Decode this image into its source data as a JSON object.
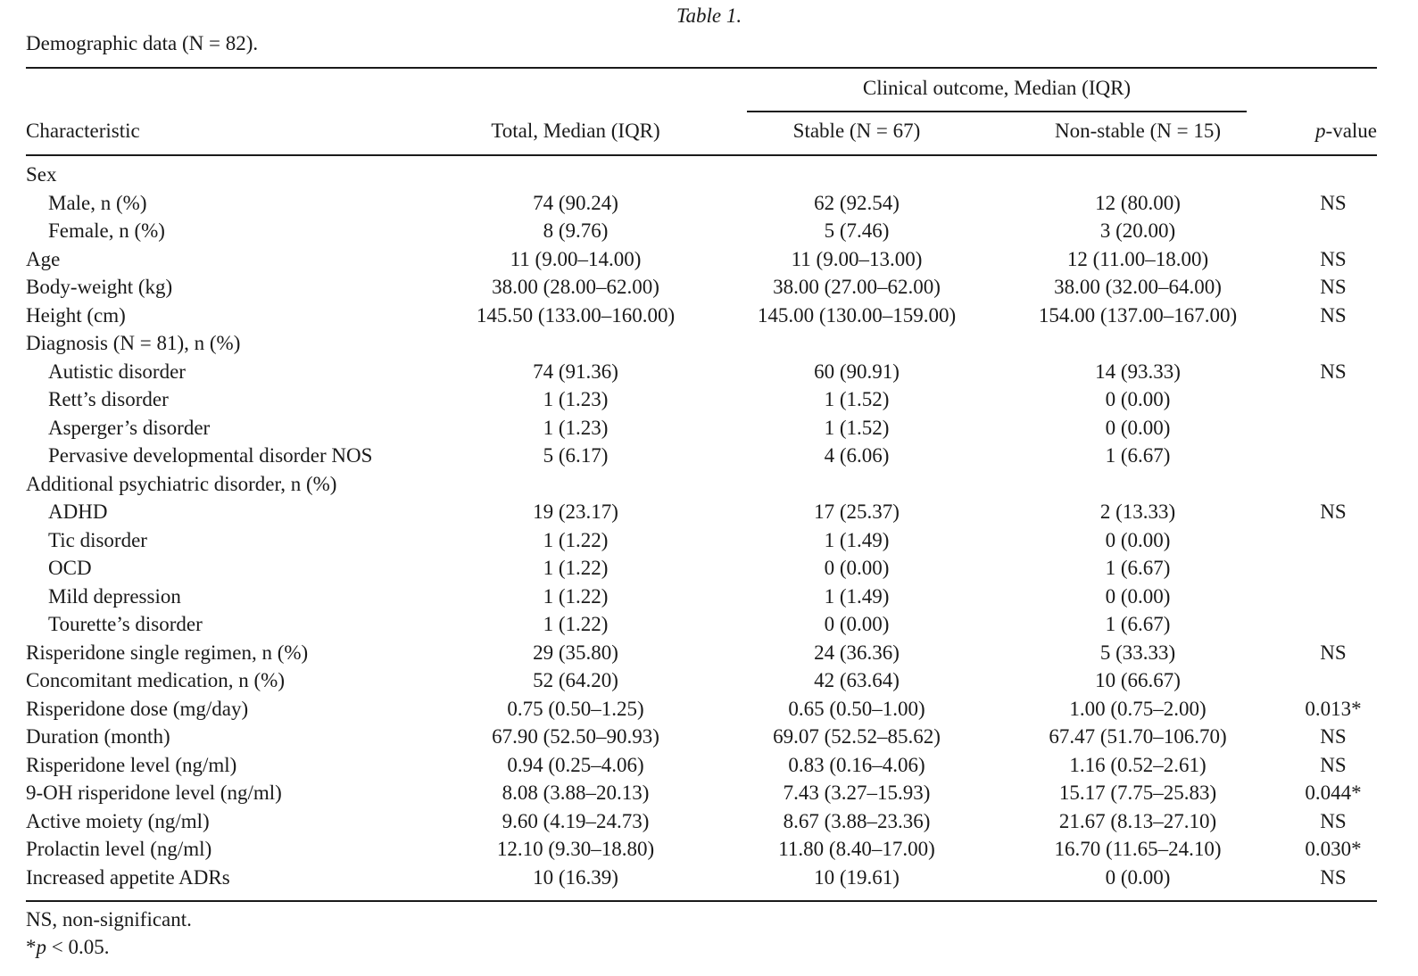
{
  "caption": {
    "title": "Table 1.",
    "subtitle": "Demographic data (N = 82)."
  },
  "headers": {
    "group": "Clinical outcome, Median (IQR)",
    "characteristic": "Characteristic",
    "total": "Total, Median (IQR)",
    "stable": "Stable (N = 67)",
    "nonstable": "Non-stable (N = 15)",
    "pvalue_italic": "p",
    "pvalue_rest": "-value"
  },
  "rows": [
    {
      "label": "Sex",
      "total": "",
      "stable": "",
      "nonstable": "",
      "p": ""
    },
    {
      "label": "Male, n (%)",
      "total": "74 (90.24)",
      "stable": "62 (92.54)",
      "nonstable": "12 (80.00)",
      "p": "NS"
    },
    {
      "label": "Female, n (%)",
      "total": "8 (9.76)",
      "stable": "5 (7.46)",
      "nonstable": "3 (20.00)",
      "p": ""
    },
    {
      "label": "Age",
      "total": "11 (9.00–14.00)",
      "stable": "11 (9.00–13.00)",
      "nonstable": "12 (11.00–18.00)",
      "p": "NS"
    },
    {
      "label": "Body-weight (kg)",
      "total": "38.00 (28.00–62.00)",
      "stable": "38.00 (27.00–62.00)",
      "nonstable": "38.00 (32.00–64.00)",
      "p": "NS"
    },
    {
      "label": "Height (cm)",
      "total": "145.50 (133.00–160.00)",
      "stable": "145.00 (130.00–159.00)",
      "nonstable": "154.00 (137.00–167.00)",
      "p": "NS"
    },
    {
      "label": "Diagnosis (N = 81), n (%)",
      "total": "",
      "stable": "",
      "nonstable": "",
      "p": ""
    },
    {
      "label": "Autistic disorder",
      "total": "74 (91.36)",
      "stable": "60 (90.91)",
      "nonstable": "14 (93.33)",
      "p": "NS"
    },
    {
      "label": "Rett’s disorder",
      "total": "1 (1.23)",
      "stable": "1 (1.52)",
      "nonstable": "0 (0.00)",
      "p": ""
    },
    {
      "label": "Asperger’s disorder",
      "total": "1 (1.23)",
      "stable": "1 (1.52)",
      "nonstable": "0 (0.00)",
      "p": ""
    },
    {
      "label": "Pervasive developmental disorder NOS",
      "total": "5 (6.17)",
      "stable": "4 (6.06)",
      "nonstable": "1 (6.67)",
      "p": ""
    },
    {
      "label": "Additional psychiatric disorder, n (%)",
      "total": "",
      "stable": "",
      "nonstable": "",
      "p": ""
    },
    {
      "label": "ADHD",
      "total": "19 (23.17)",
      "stable": "17 (25.37)",
      "nonstable": "2 (13.33)",
      "p": "NS"
    },
    {
      "label": "Tic disorder",
      "total": "1 (1.22)",
      "stable": "1 (1.49)",
      "nonstable": "0 (0.00)",
      "p": ""
    },
    {
      "label": "OCD",
      "total": "1 (1.22)",
      "stable": "0 (0.00)",
      "nonstable": "1 (6.67)",
      "p": ""
    },
    {
      "label": "Mild depression",
      "total": "1 (1.22)",
      "stable": "1 (1.49)",
      "nonstable": "0 (0.00)",
      "p": ""
    },
    {
      "label": "Tourette’s disorder",
      "total": "1 (1.22)",
      "stable": "0 (0.00)",
      "nonstable": "1 (6.67)",
      "p": ""
    },
    {
      "label": "Risperidone single regimen, n (%)",
      "total": "29 (35.80)",
      "stable": "24 (36.36)",
      "nonstable": "5 (33.33)",
      "p": "NS"
    },
    {
      "label": "Concomitant medication, n (%)",
      "total": "52 (64.20)",
      "stable": "42 (63.64)",
      "nonstable": "10 (66.67)",
      "p": ""
    },
    {
      "label": "Risperidone dose (mg/day)",
      "total": "0.75 (0.50–1.25)",
      "stable": "0.65 (0.50–1.00)",
      "nonstable": "1.00 (0.75–2.00)",
      "p": "0.013*"
    },
    {
      "label": "Duration (month)",
      "total": "67.90 (52.50–90.93)",
      "stable": "69.07 (52.52–85.62)",
      "nonstable": "67.47 (51.70–106.70)",
      "p": "NS"
    },
    {
      "label": "Risperidone level (ng/ml)",
      "total": "0.94 (0.25–4.06)",
      "stable": "0.83 (0.16–4.06)",
      "nonstable": "1.16 (0.52–2.61)",
      "p": "NS"
    },
    {
      "label": "9-OH risperidone level (ng/ml)",
      "total": "8.08 (3.88–20.13)",
      "stable": "7.43 (3.27–15.93)",
      "nonstable": "15.17 (7.75–25.83)",
      "p": "0.044*"
    },
    {
      "label": "Active moiety (ng/ml)",
      "total": "9.60 (4.19–24.73)",
      "stable": "8.67 (3.88–23.36)",
      "nonstable": "21.67 (8.13–27.10)",
      "p": "NS"
    },
    {
      "label": "Prolactin level (ng/ml)",
      "total": "12.10 (9.30–18.80)",
      "stable": "11.80 (8.40–17.00)",
      "nonstable": "16.70 (11.65–24.10)",
      "p": "0.030*"
    },
    {
      "label": "Increased appetite ADRs",
      "total": "10 (16.39)",
      "stable": "10 (19.61)",
      "nonstable": "0 (0.00)",
      "p": "NS"
    }
  ],
  "footnotes": {
    "ns": "NS, non-significant.",
    "sig_star": "*",
    "sig_p": "p",
    "sig_rest": " < 0.05."
  }
}
